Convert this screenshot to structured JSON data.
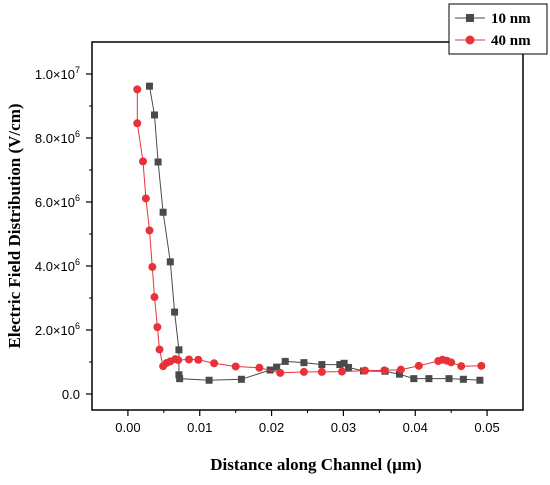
{
  "chart_data": {
    "type": "line",
    "xlabel": "Distance along Channel (µm)",
    "ylabel": "Electric Field Distribution (V/cm)",
    "xlim": [
      -0.005,
      0.055
    ],
    "ylim": [
      -500000,
      11000000
    ],
    "xticks": [
      0.0,
      0.01,
      0.02,
      0.03,
      0.04,
      0.05
    ],
    "xtick_labels": [
      "0.00",
      "0.01",
      "0.02",
      "0.03",
      "0.04",
      "0.05"
    ],
    "yticks": [
      0,
      2000000,
      4000000,
      6000000,
      8000000,
      10000000
    ],
    "ytick_labels": [
      {
        "mant": "0.0",
        "exp": ""
      },
      {
        "mant": "2.0×10",
        "exp": "6"
      },
      {
        "mant": "4.0×10",
        "exp": "6"
      },
      {
        "mant": "6.0×10",
        "exp": "6"
      },
      {
        "mant": "8.0×10",
        "exp": "6"
      },
      {
        "mant": "1.0×10",
        "exp": "7"
      }
    ],
    "legend_position": "top-right",
    "series": [
      {
        "name": "10 nm",
        "color": "#4a4a4a",
        "marker": "square",
        "points": [
          [
            0.003,
            9620000
          ],
          [
            0.0037,
            8720000
          ],
          [
            0.0042,
            7250000
          ],
          [
            0.0049,
            5680000
          ],
          [
            0.0059,
            4130000
          ],
          [
            0.0065,
            2560000
          ],
          [
            0.0071,
            1380000
          ],
          [
            0.0071,
            600000
          ],
          [
            0.0072,
            480000
          ],
          [
            0.0113,
            430000
          ],
          [
            0.0158,
            460000
          ],
          [
            0.0198,
            750000
          ],
          [
            0.0207,
            840000
          ],
          [
            0.0219,
            1020000
          ],
          [
            0.0245,
            980000
          ],
          [
            0.027,
            920000
          ],
          [
            0.0295,
            920000
          ],
          [
            0.0301,
            960000
          ],
          [
            0.0307,
            830000
          ],
          [
            0.0328,
            720000
          ],
          [
            0.0358,
            710000
          ],
          [
            0.0378,
            620000
          ],
          [
            0.0398,
            480000
          ],
          [
            0.0419,
            480000
          ],
          [
            0.0447,
            480000
          ],
          [
            0.0467,
            460000
          ],
          [
            0.049,
            430000
          ]
        ]
      },
      {
        "name": "40 nm",
        "color": "#e8323a",
        "marker": "circle",
        "points": [
          [
            0.0013,
            9520000
          ],
          [
            0.0013,
            8460000
          ],
          [
            0.0021,
            7270000
          ],
          [
            0.0025,
            6110000
          ],
          [
            0.003,
            5110000
          ],
          [
            0.0034,
            3970000
          ],
          [
            0.0037,
            3030000
          ],
          [
            0.0041,
            2090000
          ],
          [
            0.0044,
            1390000
          ],
          [
            0.0049,
            870000
          ],
          [
            0.0054,
            970000
          ],
          [
            0.0059,
            1020000
          ],
          [
            0.0066,
            1090000
          ],
          [
            0.007,
            1060000
          ],
          [
            0.0085,
            1080000
          ],
          [
            0.0098,
            1070000
          ],
          [
            0.012,
            960000
          ],
          [
            0.015,
            860000
          ],
          [
            0.0183,
            820000
          ],
          [
            0.0212,
            660000
          ],
          [
            0.0245,
            690000
          ],
          [
            0.027,
            690000
          ],
          [
            0.0298,
            700000
          ],
          [
            0.033,
            730000
          ],
          [
            0.0357,
            740000
          ],
          [
            0.038,
            760000
          ],
          [
            0.0405,
            880000
          ],
          [
            0.0432,
            1030000
          ],
          [
            0.0438,
            1070000
          ],
          [
            0.0444,
            1040000
          ],
          [
            0.045,
            990000
          ],
          [
            0.0464,
            870000
          ],
          [
            0.0492,
            880000
          ]
        ]
      }
    ]
  }
}
